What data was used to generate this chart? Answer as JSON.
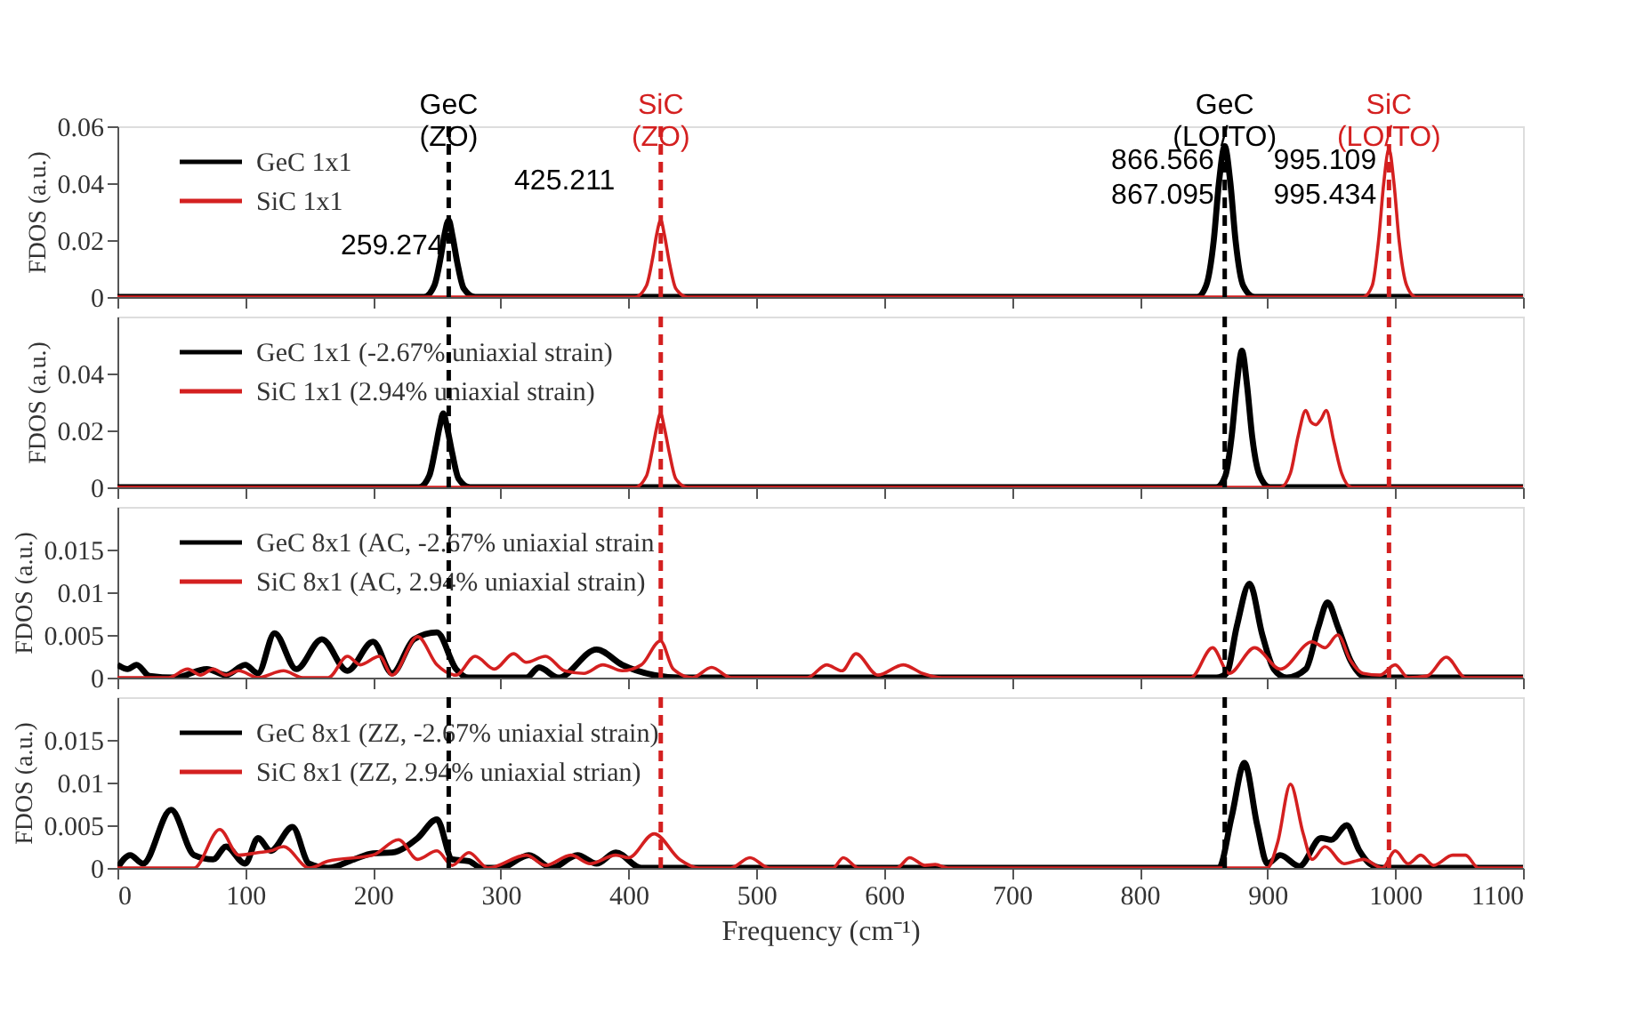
{
  "chart_data": [
    {
      "type": "line",
      "ylabel": "FDOS (a.u.)",
      "xlim": [
        0,
        1100
      ],
      "xticks": [
        0,
        100,
        200,
        300,
        400,
        500,
        600,
        700,
        800,
        900,
        1000,
        1100
      ],
      "ylim": [
        0,
        0.06
      ],
      "yticks": [
        0,
        0.02,
        0.04,
        0.06
      ],
      "grid": false,
      "legend": "top left",
      "tick_labels": "y",
      "series": [
        {
          "name": "GeC 1x1",
          "color": "#000000",
          "x": [
            0,
            240,
            248,
            253,
            256,
            259.274,
            262,
            266,
            271,
            280,
            845,
            852,
            858,
            862,
            866.566,
            871,
            875,
            881,
            890,
            1100
          ],
          "values": [
            0,
            0,
            0.004,
            0.014,
            0.022,
            0.027,
            0.022,
            0.012,
            0.003,
            0,
            0,
            0.004,
            0.02,
            0.04,
            0.053,
            0.04,
            0.02,
            0.004,
            0,
            0
          ]
        },
        {
          "name": "SiC 1x1",
          "color": "#d42020",
          "x": [
            0,
            405,
            414,
            419,
            422,
            425.211,
            428,
            432,
            437,
            446,
            975,
            982,
            987,
            991,
            995.109,
            999,
            1003,
            1009,
            1016,
            1100
          ],
          "values": [
            0,
            0,
            0.004,
            0.014,
            0.022,
            0.027,
            0.022,
            0.012,
            0.003,
            0,
            0,
            0.004,
            0.02,
            0.04,
            0.052,
            0.04,
            0.02,
            0.004,
            0,
            0
          ]
        }
      ],
      "ref_lines": [
        {
          "axis": "x",
          "value": 259.274,
          "label": "GeC\n(ZO)",
          "color": "#000000",
          "line_style": "dashed"
        },
        {
          "axis": "x",
          "value": 425.211,
          "label": "SiC\n(ZO)",
          "color": "#d42020",
          "line_style": "dashed"
        },
        {
          "axis": "x",
          "value": 866.566,
          "label": "GeC\n(LO/TO)",
          "color": "#000000",
          "line_style": "dashed"
        },
        {
          "axis": "x",
          "value": 995.109,
          "label": "SiC\n(LO/TO)",
          "color": "#d42020",
          "line_style": "dashed"
        }
      ],
      "annotations": [
        "425.211",
        "259.274",
        "866.566",
        "867.095",
        "995.109",
        "995.434"
      ]
    },
    {
      "type": "line",
      "ylabel": "FDOS (a.u.)",
      "xlim": [
        0,
        1100
      ],
      "xticks": [
        0,
        100,
        200,
        300,
        400,
        500,
        600,
        700,
        800,
        900,
        1000,
        1100
      ],
      "ylim": [
        0,
        0.06
      ],
      "yticks": [
        0,
        0.02,
        0.04
      ],
      "grid": false,
      "legend": "top left",
      "tick_labels": "y",
      "series": [
        {
          "name": "GeC 1x1 (-2.67% uniaxial strain)",
          "color": "#000000",
          "x": [
            0,
            236,
            244,
            249,
            252,
            255,
            258,
            262,
            267,
            276,
            860,
            867,
            872,
            876,
            880,
            884,
            888,
            894,
            902,
            1100
          ],
          "values": [
            0,
            0,
            0.004,
            0.014,
            0.021,
            0.026,
            0.021,
            0.012,
            0.003,
            0,
            0,
            0.004,
            0.018,
            0.036,
            0.048,
            0.036,
            0.018,
            0.004,
            0,
            0
          ]
        },
        {
          "name": "SiC 1x1 (2.94% uniaxial strain)",
          "color": "#d42020",
          "x": [
            0,
            405,
            414,
            419,
            422,
            425,
            428,
            432,
            437,
            446,
            910,
            918,
            924,
            930,
            934,
            938,
            942,
            946,
            952,
            958,
            966,
            1100
          ],
          "values": [
            0,
            0,
            0.004,
            0.014,
            0.021,
            0.026,
            0.021,
            0.012,
            0.003,
            0,
            0,
            0.005,
            0.018,
            0.027,
            0.023,
            0.022,
            0.024,
            0.027,
            0.016,
            0.005,
            0,
            0
          ]
        }
      ],
      "ref_lines": [
        {
          "axis": "x",
          "value": 259.274,
          "color": "#000000",
          "line_style": "dashed"
        },
        {
          "axis": "x",
          "value": 425.211,
          "color": "#d42020",
          "line_style": "dashed"
        },
        {
          "axis": "x",
          "value": 866.566,
          "color": "#000000",
          "line_style": "dashed"
        },
        {
          "axis": "x",
          "value": 995.109,
          "color": "#d42020",
          "line_style": "dashed"
        }
      ]
    },
    {
      "type": "line",
      "ylabel": "FDOS (a.u.)",
      "xlim": [
        0,
        1100
      ],
      "xticks": [
        0,
        100,
        200,
        300,
        400,
        500,
        600,
        700,
        800,
        900,
        1000,
        1100
      ],
      "ylim": [
        0,
        0.02
      ],
      "yticks": [
        0,
        0.005,
        0.01,
        0.015
      ],
      "grid": false,
      "legend": "top left",
      "tick_labels": "y",
      "series": [
        {
          "name": "GeC 8x1 (AC, -2.67% uniaxial strain",
          "color": "#000000",
          "x": [
            0,
            8,
            15,
            25,
            45,
            70,
            85,
            100,
            110,
            123,
            140,
            160,
            180,
            200,
            215,
            232,
            250,
            265,
            275,
            320,
            330,
            345,
            375,
            395,
            420,
            440,
            860,
            868,
            876,
            886,
            896,
            905,
            915,
            930,
            940,
            947,
            955,
            965,
            978,
            1100
          ],
          "values": [
            0.0015,
            0.001,
            0.0015,
            0.0002,
            0,
            0.001,
            0.0003,
            0.0015,
            0.0005,
            0.0052,
            0.001,
            0.0045,
            0.0008,
            0.0042,
            0.0005,
            0.0045,
            0.0053,
            0.001,
            0,
            0,
            0.0012,
            0,
            0.0033,
            0.0015,
            0.0003,
            0,
            0,
            0.0005,
            0.006,
            0.011,
            0.005,
            0.001,
            0,
            0.001,
            0.006,
            0.0088,
            0.006,
            0.002,
            0,
            0
          ]
        },
        {
          "name": "SiC 8x1 (AC, 2.94% uniaxial strain)",
          "color": "#d42020",
          "x": [
            0,
            40,
            55,
            65,
            75,
            85,
            95,
            110,
            130,
            145,
            165,
            180,
            190,
            205,
            215,
            235,
            250,
            265,
            280,
            295,
            310,
            320,
            335,
            350,
            365,
            380,
            395,
            410,
            425,
            435,
            450,
            465,
            480,
            540,
            555,
            567,
            578,
            595,
            615,
            630,
            645,
            840,
            857,
            870,
            890,
            910,
            935,
            945,
            955,
            965,
            975,
            988,
            1000,
            1010,
            1025,
            1040,
            1055,
            1100
          ],
          "values": [
            0,
            0,
            0.001,
            0.0003,
            0.001,
            0.0003,
            0.0008,
            0,
            0.0008,
            0,
            0,
            0.0025,
            0.0015,
            0.0025,
            0.0003,
            0.0048,
            0.0015,
            0.0003,
            0.0025,
            0.001,
            0.0028,
            0.0018,
            0.0025,
            0.0008,
            0.0005,
            0.0015,
            0.0008,
            0.0015,
            0.0043,
            0.001,
            0,
            0.0012,
            0,
            0,
            0.0015,
            0.0008,
            0.0028,
            0.0003,
            0.0015,
            0.0005,
            0,
            0,
            0.0035,
            0.0005,
            0.0035,
            0.001,
            0.0042,
            0.0035,
            0.005,
            0.002,
            0.0005,
            0.0003,
            0.0015,
            0,
            0.0002,
            0.0024,
            0,
            0
          ]
        }
      ],
      "ref_lines": [
        {
          "axis": "x",
          "value": 259.274,
          "color": "#000000",
          "line_style": "dashed"
        },
        {
          "axis": "x",
          "value": 425.211,
          "color": "#d42020",
          "line_style": "dashed"
        },
        {
          "axis": "x",
          "value": 866.566,
          "color": "#000000",
          "line_style": "dashed"
        },
        {
          "axis": "x",
          "value": 995.109,
          "color": "#d42020",
          "line_style": "dashed"
        }
      ]
    },
    {
      "type": "line",
      "xlabel": "Frequency (cm⁻¹)",
      "ylabel": "FDOS (a.u.)",
      "xlim": [
        0,
        1100
      ],
      "xticks": [
        0,
        100,
        200,
        300,
        400,
        500,
        600,
        700,
        800,
        900,
        1000,
        1100
      ],
      "ylim": [
        0,
        0.02
      ],
      "yticks": [
        0,
        0.005,
        0.01,
        0.015
      ],
      "grid": false,
      "legend": "top left",
      "series": [
        {
          "name": "GeC 8x1 (ZZ, -2.67% uniaxial strain)",
          "color": "#000000",
          "x": [
            0,
            10,
            20,
            42,
            60,
            75,
            85,
            100,
            110,
            120,
            137,
            150,
            165,
            185,
            200,
            215,
            235,
            250,
            262,
            275,
            285,
            300,
            322,
            340,
            360,
            375,
            390,
            410,
            862,
            872,
            882,
            892,
            900,
            910,
            925,
            942,
            950,
            962,
            972,
            980,
            990,
            1100
          ],
          "values": [
            0,
            0.0015,
            0.0005,
            0.0068,
            0.0015,
            0.001,
            0.0025,
            0.0005,
            0.0035,
            0.002,
            0.0048,
            0.0005,
            0,
            0.001,
            0.0017,
            0.0018,
            0.0035,
            0.0057,
            0.001,
            0.0008,
            0,
            0,
            0.0015,
            0,
            0.0015,
            0.0005,
            0.0018,
            0,
            0,
            0.006,
            0.0123,
            0.005,
            0.0005,
            0.0015,
            0.0002,
            0.0035,
            0.0033,
            0.005,
            0.002,
            0.0005,
            0,
            0
          ]
        },
        {
          "name": "SiC 8x1 (ZZ, 2.94% uniaxial strian)",
          "color": "#d42020",
          "x": [
            0,
            60,
            80,
            95,
            110,
            120,
            130,
            150,
            165,
            200,
            220,
            235,
            250,
            262,
            275,
            290,
            320,
            335,
            355,
            370,
            390,
            400,
            420,
            440,
            455,
            480,
            495,
            510,
            560,
            568,
            580,
            610,
            620,
            632,
            640,
            650,
            900,
            908,
            918,
            928,
            935,
            945,
            960,
            975,
            990,
            1000,
            1010,
            1020,
            1030,
            1045,
            1055,
            1065,
            1100
          ],
          "values": [
            0,
            0,
            0.0045,
            0.0015,
            0.0018,
            0.002,
            0.0025,
            0,
            0.0008,
            0.0015,
            0.0033,
            0.001,
            0.002,
            0.0003,
            0.0018,
            0,
            0.0015,
            0.0003,
            0.0015,
            0.0005,
            0.0015,
            0.0012,
            0.004,
            0.001,
            0,
            0,
            0.0012,
            0,
            0,
            0.0012,
            0,
            0,
            0.0012,
            0.0003,
            0.0004,
            0,
            0,
            0.003,
            0.0098,
            0.004,
            0.001,
            0.0025,
            0.0005,
            0.001,
            0,
            0.002,
            0.0005,
            0.0015,
            0.0003,
            0.0015,
            0.0015,
            0,
            0
          ]
        }
      ],
      "ref_lines": [
        {
          "axis": "x",
          "value": 259.274,
          "color": "#000000",
          "line_style": "dashed"
        },
        {
          "axis": "x",
          "value": 425.211,
          "color": "#d42020",
          "line_style": "dashed"
        },
        {
          "axis": "x",
          "value": 866.566,
          "color": "#000000",
          "line_style": "dashed"
        },
        {
          "axis": "x",
          "value": 995.109,
          "color": "#d42020",
          "line_style": "dashed"
        }
      ]
    }
  ]
}
